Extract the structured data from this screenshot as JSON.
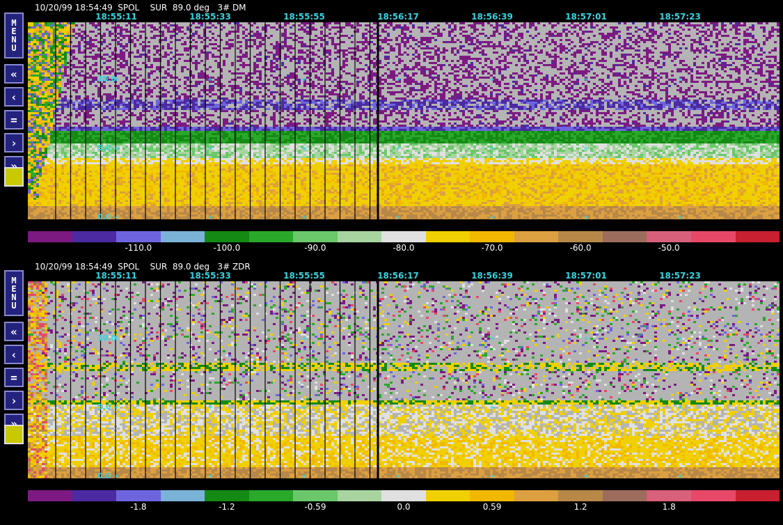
{
  "panels": [
    {
      "id": "dm",
      "header": "10/20/99 18:54:49  SPOL    SUR  89.0 deg   3# DM",
      "times": [
        "18:55:11",
        "18:55:33",
        "18:55:55",
        "18:56:17",
        "18:56:39",
        "18:57:01",
        "18:57:23"
      ],
      "y_labels": [
        "10.0",
        "5.0",
        "0.0"
      ],
      "scale_colors": [
        "#7d1a82",
        "#4c2aa2",
        "#6e64e0",
        "#7ab2d8",
        "#148a14",
        "#2aa82a",
        "#6ac86a",
        "#a8d4a0",
        "#e0e0e0",
        "#f0d000",
        "#f2b800",
        "#dca040",
        "#b88848",
        "#9c6c5c",
        "#d8607a",
        "#e84868",
        "#c82030"
      ],
      "scale_labels": [
        "-110.0",
        "-100.0",
        "-90.0",
        "-80.0",
        "-70.0",
        "-60.0",
        "-50.0"
      ],
      "profile": "dm"
    },
    {
      "id": "zdr",
      "header": "10/20/99 18:54:49  SPOL    SUR  89.0 deg   3# ZDR",
      "times": [
        "18:55:11",
        "18:55:33",
        "18:55:55",
        "18:56:17",
        "18:56:39",
        "18:57:01",
        "18:57:23"
      ],
      "y_labels": [
        "10.0",
        "5.0",
        "0.0"
      ],
      "scale_colors": [
        "#7d1a82",
        "#4c2aa2",
        "#6e64e0",
        "#7ab2d8",
        "#148a14",
        "#2aa82a",
        "#6ac86a",
        "#a8d4a0",
        "#e0e0e0",
        "#f0d000",
        "#f2b800",
        "#dca040",
        "#b88848",
        "#9c6c5c",
        "#d8607a",
        "#e84868",
        "#c82030"
      ],
      "scale_labels": [
        "-1.8",
        "-1.2",
        "-0.59",
        "0.0",
        "0.59",
        "1.2",
        "1.8"
      ],
      "profile": "zdr"
    }
  ],
  "toolbar": {
    "menu_label": [
      "M",
      "E",
      "N",
      "U"
    ],
    "buttons": [
      {
        "name": "fast-rewind-button",
        "icon": "double-chevron-left-icon",
        "glyph": "«"
      },
      {
        "name": "step-back-button",
        "icon": "chevron-left-icon",
        "glyph": "‹"
      },
      {
        "name": "pause-button",
        "icon": "equals-icon",
        "glyph": "="
      },
      {
        "name": "step-forward-button",
        "icon": "chevron-right-icon",
        "glyph": "›"
      },
      {
        "name": "fast-forward-button",
        "icon": "double-chevron-right-icon",
        "glyph": "»"
      }
    ]
  }
}
